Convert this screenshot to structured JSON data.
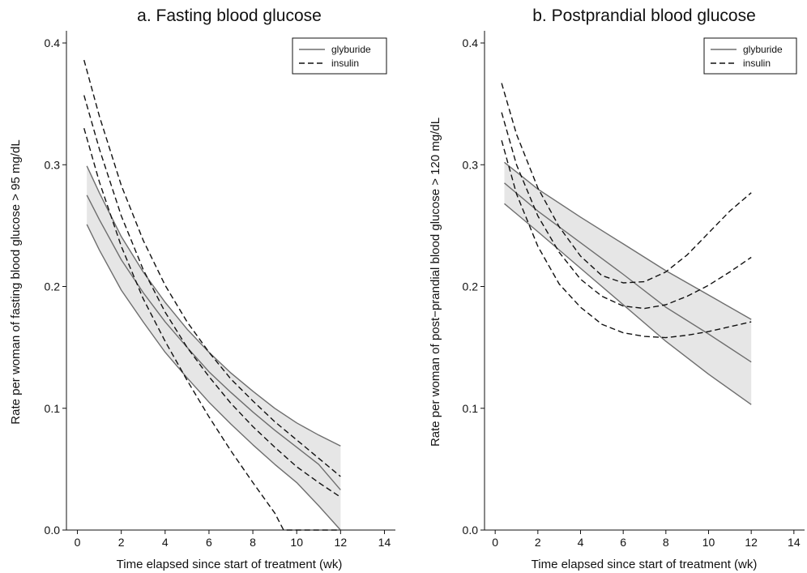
{
  "chart_data": [
    {
      "type": "line",
      "title": "a. Fasting blood glucose",
      "xlabel": "Time elapsed since start of treatment (wk)",
      "ylabel": "Rate per woman of fasting blood glucose > 95 mg/dL",
      "xlim": [
        -0.5,
        14.5
      ],
      "ylim": [
        0.0,
        0.41
      ],
      "x_ticks": [
        0,
        2,
        4,
        6,
        8,
        10,
        12,
        14
      ],
      "y_ticks": [
        0.0,
        0.1,
        0.2,
        0.3,
        0.4
      ],
      "x_tick_labels": [
        "0",
        "2",
        "4",
        "6",
        "8",
        "10",
        "12",
        "14"
      ],
      "y_tick_labels": [
        "0.0",
        "0.1",
        "0.2",
        "0.3",
        "0.4"
      ],
      "grid": false,
      "legend_position": "top-right",
      "legend": [
        "glyburide",
        "insulin"
      ],
      "series": [
        {
          "name": "glyburide",
          "role": "estimate",
          "style": "solid",
          "color": "#6e6e6e",
          "x": [
            0.43,
            1,
            2,
            3,
            4,
            5,
            6,
            7,
            8,
            9,
            10,
            11,
            12
          ],
          "y": [
            0.275,
            0.255,
            0.222,
            0.195,
            0.171,
            0.15,
            0.13,
            0.113,
            0.097,
            0.082,
            0.068,
            0.054,
            0.033
          ]
        },
        {
          "role": "ci-upper",
          "style": "solid",
          "color": "#6e6e6e",
          "x": [
            0.43,
            1,
            2,
            3,
            4,
            5,
            6,
            7,
            8,
            9,
            10,
            11,
            12
          ],
          "y": [
            0.299,
            0.277,
            0.241,
            0.212,
            0.187,
            0.165,
            0.146,
            0.129,
            0.114,
            0.1,
            0.088,
            0.078,
            0.069
          ]
        },
        {
          "role": "ci-lower",
          "style": "solid",
          "color": "#6e6e6e",
          "x": [
            0.43,
            1,
            2,
            3,
            4,
            5,
            6,
            7,
            8,
            9,
            10,
            11,
            12
          ],
          "y": [
            0.251,
            0.23,
            0.197,
            0.171,
            0.146,
            0.125,
            0.105,
            0.087,
            0.07,
            0.054,
            0.039,
            0.02,
            0.0
          ]
        },
        {
          "name": "insulin",
          "role": "estimate",
          "style": "dashed",
          "color": "#111111",
          "x": [
            0.3,
            1,
            2,
            3,
            4,
            5,
            6,
            7,
            8,
            9,
            10,
            11,
            12
          ],
          "y": [
            0.357,
            0.313,
            0.258,
            0.214,
            0.179,
            0.15,
            0.126,
            0.104,
            0.085,
            0.068,
            0.052,
            0.039,
            0.027
          ]
        },
        {
          "role": "ci-upper",
          "style": "dashed",
          "color": "#111111",
          "x": [
            0.3,
            1,
            2,
            3,
            4,
            5,
            6,
            7,
            8,
            9,
            10,
            11,
            12
          ],
          "y": [
            0.386,
            0.34,
            0.283,
            0.238,
            0.201,
            0.171,
            0.146,
            0.124,
            0.106,
            0.089,
            0.074,
            0.059,
            0.044
          ]
        },
        {
          "role": "ci-lower",
          "style": "dashed",
          "color": "#111111",
          "x": [
            0.3,
            1,
            2,
            3,
            4,
            5,
            6,
            7,
            8,
            9,
            9.4,
            10,
            11,
            12
          ],
          "y": [
            0.33,
            0.286,
            0.233,
            0.19,
            0.155,
            0.123,
            0.093,
            0.065,
            0.039,
            0.014,
            0.0,
            0.0,
            0.0,
            0.0
          ]
        }
      ],
      "band_fill": "#e6e6e6"
    },
    {
      "type": "line",
      "title": "b. Postprandial blood glucose",
      "xlabel": "Time elapsed since start of treatment (wk)",
      "ylabel": "Rate per woman of post−prandial blood glucose > 120 mg/dL",
      "xlim": [
        -0.5,
        14.5
      ],
      "ylim": [
        0.0,
        0.41
      ],
      "x_ticks": [
        0,
        2,
        4,
        6,
        8,
        10,
        12,
        14
      ],
      "y_ticks": [
        0.0,
        0.1,
        0.2,
        0.3,
        0.4
      ],
      "x_tick_labels": [
        "0",
        "2",
        "4",
        "6",
        "8",
        "10",
        "12",
        "14"
      ],
      "y_tick_labels": [
        "0.0",
        "0.1",
        "0.2",
        "0.3",
        "0.4"
      ],
      "grid": false,
      "legend_position": "top-right",
      "legend": [
        "glyburide",
        "insulin"
      ],
      "series": [
        {
          "name": "glyburide",
          "role": "estimate",
          "style": "solid",
          "color": "#6e6e6e",
          "x": [
            0.43,
            2,
            4,
            6,
            8,
            10,
            12
          ],
          "y": [
            0.285,
            0.262,
            0.236,
            0.21,
            0.183,
            0.161,
            0.138
          ]
        },
        {
          "role": "ci-upper",
          "style": "solid",
          "color": "#6e6e6e",
          "x": [
            0.43,
            2,
            4,
            6,
            8,
            10,
            12
          ],
          "y": [
            0.302,
            0.28,
            0.257,
            0.235,
            0.213,
            0.193,
            0.173
          ]
        },
        {
          "role": "ci-lower",
          "style": "solid",
          "color": "#6e6e6e",
          "x": [
            0.43,
            2,
            4,
            6,
            8,
            10,
            12
          ],
          "y": [
            0.268,
            0.245,
            0.215,
            0.185,
            0.155,
            0.128,
            0.103
          ]
        },
        {
          "name": "insulin",
          "role": "estimate",
          "style": "dashed",
          "color": "#111111",
          "x": [
            0.3,
            1,
            2,
            3,
            4,
            5,
            6,
            7,
            8,
            9,
            10,
            11,
            12
          ],
          "y": [
            0.343,
            0.3,
            0.258,
            0.228,
            0.206,
            0.192,
            0.184,
            0.182,
            0.185,
            0.192,
            0.201,
            0.212,
            0.224
          ]
        },
        {
          "role": "ci-upper",
          "style": "dashed",
          "color": "#111111",
          "x": [
            0.3,
            1,
            2,
            3,
            4,
            5,
            6,
            7,
            8,
            9,
            10,
            11,
            12
          ],
          "y": [
            0.367,
            0.325,
            0.281,
            0.249,
            0.225,
            0.209,
            0.203,
            0.204,
            0.212,
            0.226,
            0.244,
            0.262,
            0.277
          ]
        },
        {
          "role": "ci-lower",
          "style": "dashed",
          "color": "#111111",
          "x": [
            0.3,
            1,
            2,
            3,
            4,
            5,
            6,
            7,
            8,
            9,
            10,
            11,
            12
          ],
          "y": [
            0.32,
            0.276,
            0.233,
            0.202,
            0.183,
            0.169,
            0.162,
            0.159,
            0.158,
            0.16,
            0.163,
            0.167,
            0.171
          ]
        }
      ],
      "band_fill": "#e6e6e6"
    }
  ]
}
